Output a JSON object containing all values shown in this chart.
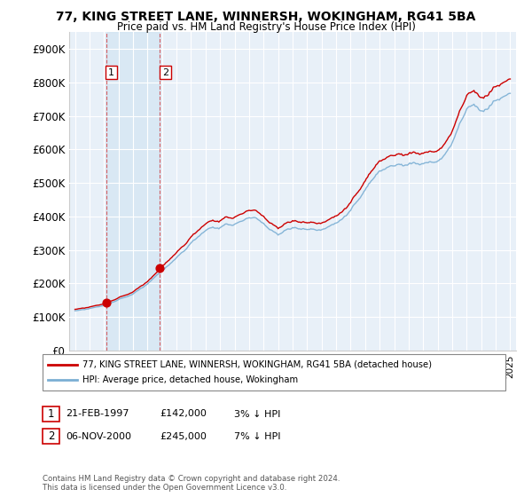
{
  "title": "77, KING STREET LANE, WINNERSH, WOKINGHAM, RG41 5BA",
  "subtitle": "Price paid vs. HM Land Registry's House Price Index (HPI)",
  "purchase_info": [
    {
      "num": "1",
      "date": "21-FEB-1997",
      "price": "£142,000",
      "hpi": "3% ↓ HPI"
    },
    {
      "num": "2",
      "date": "06-NOV-2000",
      "price": "£245,000",
      "hpi": "7% ↓ HPI"
    }
  ],
  "legend_line1": "77, KING STREET LANE, WINNERSH, WOKINGHAM, RG41 5BA (detached house)",
  "legend_line2": "HPI: Average price, detached house, Wokingham",
  "footer": "Contains HM Land Registry data © Crown copyright and database right 2024.\nThis data is licensed under the Open Government Licence v3.0.",
  "hpi_line_color": "#7bafd4",
  "price_line_color": "#cc0000",
  "dot_color": "#cc0000",
  "shade_color": "#d6e8f5",
  "plot_bg": "#e8f0f8",
  "grid_color": "#ffffff",
  "ylim": [
    0,
    950000
  ],
  "yticks": [
    0,
    100000,
    200000,
    300000,
    400000,
    500000,
    600000,
    700000,
    800000,
    900000
  ],
  "purchase_dates_float": [
    1997.142,
    2000.851
  ],
  "purchase_prices": [
    142000,
    245000
  ],
  "xstart_year": 1995,
  "xend_year": 2025
}
